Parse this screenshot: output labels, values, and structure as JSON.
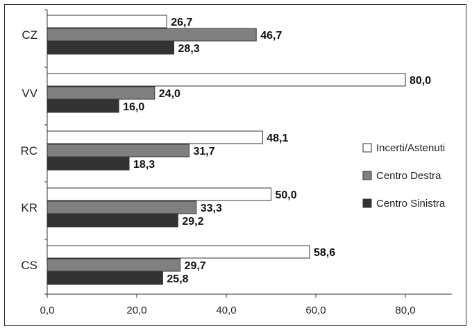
{
  "chart_data": {
    "type": "bar",
    "orientation": "horizontal",
    "categories": [
      "CZ",
      "VV",
      "RC",
      "KR",
      "CS"
    ],
    "series": [
      {
        "name": "Incerti/Astenuti",
        "values": [
          26.7,
          80.0,
          48.1,
          50.0,
          58.6
        ],
        "color": "#ffffff"
      },
      {
        "name": "Centro Destra",
        "values": [
          46.7,
          24.0,
          31.7,
          33.3,
          29.7
        ],
        "color": "#808080"
      },
      {
        "name": "Centro Sinistra",
        "values": [
          28.3,
          16.0,
          18.3,
          29.2,
          25.8
        ],
        "color": "#333333"
      }
    ],
    "value_labels": [
      [
        "26,7",
        "80,0",
        "48,1",
        "50,0",
        "58,6"
      ],
      [
        "46,7",
        "24,0",
        "31,7",
        "33,3",
        "29,7"
      ],
      [
        "28,3",
        "16,0",
        "18,3",
        "29,2",
        "25,8"
      ]
    ],
    "xlim": [
      0,
      90
    ],
    "x_ticks": [
      0,
      20,
      40,
      60,
      80
    ],
    "x_tick_labels": [
      "0,0",
      "20,0",
      "40,0",
      "60,0",
      "80,0"
    ],
    "grid": false,
    "legend_position": "right"
  }
}
